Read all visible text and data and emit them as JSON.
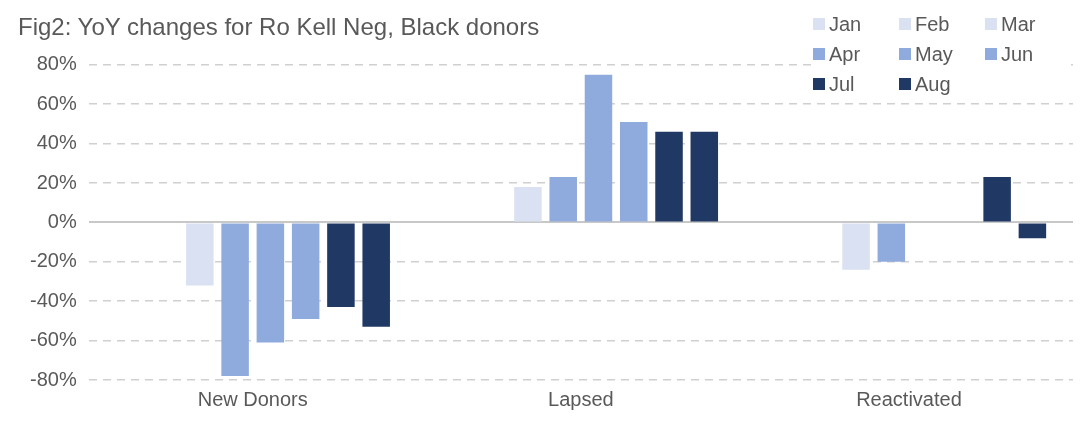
{
  "chart_data": {
    "type": "bar",
    "title": "Fig2: YoY changes for Ro Kell Neg, Black donors",
    "categories": [
      "New Donors",
      "Lapsed",
      "Reactivated"
    ],
    "series": [
      {
        "name": "Jan",
        "color": "#d9e1f2",
        "values": [
          null,
          null,
          null
        ]
      },
      {
        "name": "Feb",
        "color": "#d9e1f2",
        "values": [
          null,
          null,
          null
        ]
      },
      {
        "name": "Mar",
        "color": "#d9e1f2",
        "values": [
          -32,
          18,
          -24
        ]
      },
      {
        "name": "Apr",
        "color": "#8faadc",
        "values": [
          -78,
          23,
          -20
        ]
      },
      {
        "name": "May",
        "color": "#8faadc",
        "values": [
          -61,
          75,
          null
        ]
      },
      {
        "name": "Jun",
        "color": "#8faadc",
        "values": [
          -49,
          51,
          null
        ]
      },
      {
        "name": "Jul",
        "color": "#203864",
        "values": [
          -43,
          46,
          23
        ]
      },
      {
        "name": "Aug",
        "color": "#203864",
        "values": [
          -53,
          46,
          -8
        ]
      }
    ],
    "ylim": [
      -80,
      80
    ],
    "yticks": [
      {
        "value": -80,
        "label": "-80%"
      },
      {
        "value": -60,
        "label": "-60%"
      },
      {
        "value": -40,
        "label": "-40%"
      },
      {
        "value": -20,
        "label": "-20%"
      },
      {
        "value": 0,
        "label": "0%"
      },
      {
        "value": 20,
        "label": "20%"
      },
      {
        "value": 40,
        "label": "40%"
      },
      {
        "value": 60,
        "label": "60%"
      },
      {
        "value": 80,
        "label": "80%"
      }
    ],
    "grid": "y",
    "legend": "top right"
  }
}
